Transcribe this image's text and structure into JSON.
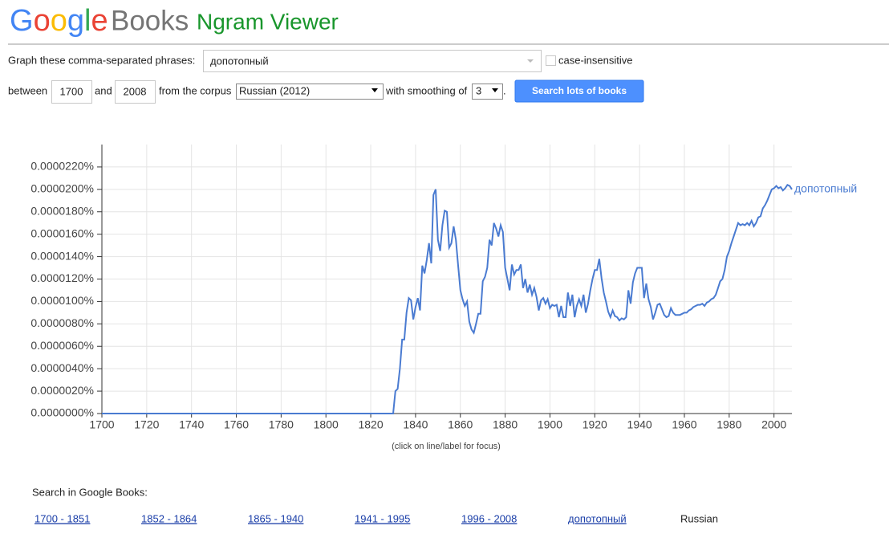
{
  "header": {
    "logo_google": "Google",
    "logo_books": "Books",
    "product": "Ngram Viewer"
  },
  "form": {
    "phrases_label": "Graph these comma-separated phrases:",
    "phrases": "допотопный",
    "case_insensitive": "case-insensitive",
    "between": "between",
    "start_year": "1700",
    "and": "and",
    "end_year": "2008",
    "corpus_label": "from the corpus",
    "corpus": "Russian (2012)",
    "smoothing_label": "with smoothing of",
    "smoothing": "3",
    "period": ".",
    "button": "Search lots of books"
  },
  "chart_data": {
    "type": "line",
    "note": "(click on line/label for focus)",
    "grid": true,
    "xlim": [
      1700,
      2008
    ],
    "ylim": [
      0,
      2.4e-05
    ],
    "xticks": [
      1700,
      1720,
      1740,
      1760,
      1780,
      1800,
      1820,
      1840,
      1860,
      1880,
      1900,
      1920,
      1940,
      1960,
      1980,
      2000
    ],
    "yticks": [
      {
        "value": 0,
        "label": "0.0000000%"
      },
      {
        "value": 2e-06,
        "label": "0.0000020%"
      },
      {
        "value": 4e-06,
        "label": "0.0000040%"
      },
      {
        "value": 6e-06,
        "label": "0.0000060%"
      },
      {
        "value": 8e-06,
        "label": "0.0000080%"
      },
      {
        "value": 1e-05,
        "label": "0.0000100%"
      },
      {
        "value": 1.2e-05,
        "label": "0.0000120%"
      },
      {
        "value": 1.4e-05,
        "label": "0.0000140%"
      },
      {
        "value": 1.6e-05,
        "label": "0.0000160%"
      },
      {
        "value": 1.8e-05,
        "label": "0.0000180%"
      },
      {
        "value": 2e-05,
        "label": "0.0000200%"
      },
      {
        "value": 2.2e-05,
        "label": "0.0000220%"
      }
    ],
    "x": [
      1700,
      1830,
      1831,
      1832,
      1833,
      1834,
      1835,
      1836,
      1837,
      1838,
      1839,
      1840,
      1841,
      1842,
      1843,
      1844,
      1845,
      1846,
      1847,
      1848,
      1849,
      1850,
      1851,
      1852,
      1853,
      1854,
      1855,
      1856,
      1857,
      1858,
      1859,
      1860,
      1861,
      1862,
      1863,
      1864,
      1865,
      1866,
      1867,
      1868,
      1869,
      1870,
      1871,
      1872,
      1873,
      1874,
      1875,
      1876,
      1877,
      1878,
      1879,
      1880,
      1881,
      1882,
      1883,
      1884,
      1885,
      1886,
      1887,
      1888,
      1889,
      1890,
      1891,
      1892,
      1893,
      1894,
      1895,
      1896,
      1897,
      1898,
      1899,
      1900,
      1901,
      1902,
      1903,
      1904,
      1905,
      1906,
      1907,
      1908,
      1909,
      1910,
      1911,
      1912,
      1913,
      1914,
      1915,
      1916,
      1917,
      1918,
      1919,
      1920,
      1921,
      1922,
      1923,
      1924,
      1925,
      1926,
      1927,
      1928,
      1929,
      1930,
      1931,
      1932,
      1933,
      1934,
      1935,
      1936,
      1937,
      1938,
      1939,
      1940,
      1941,
      1942,
      1943,
      1944,
      1945,
      1946,
      1947,
      1948,
      1949,
      1950,
      1951,
      1952,
      1953,
      1954,
      1955,
      1956,
      1957,
      1958,
      1959,
      1960,
      1961,
      1962,
      1963,
      1964,
      1965,
      1966,
      1967,
      1968,
      1969,
      1970,
      1971,
      1972,
      1973,
      1974,
      1975,
      1976,
      1977,
      1978,
      1979,
      1980,
      1981,
      1982,
      1983,
      1984,
      1985,
      1986,
      1987,
      1988,
      1989,
      1990,
      1991,
      1992,
      1993,
      1994,
      1995,
      1996,
      1997,
      1998,
      1999,
      2000,
      2001,
      2002,
      2003,
      2004,
      2005,
      2006,
      2007,
      2008
    ],
    "series": [
      {
        "name": "допотопный",
        "color": "#4a7bd1",
        "values": [
          0,
          0,
          2e-06,
          2.2e-06,
          4e-06,
          6.6e-06,
          6.6e-06,
          9e-06,
          1.03e-05,
          1.01e-05,
          8.4e-06,
          9.5e-06,
          1.03e-05,
          9.2e-06,
          1.32e-05,
          1.25e-05,
          1.37e-05,
          1.52e-05,
          1.34e-05,
          1.95e-05,
          2e-05,
          1.55e-05,
          1.45e-05,
          1.68e-05,
          1.81e-05,
          1.8e-05,
          1.48e-05,
          1.52e-05,
          1.67e-05,
          1.55e-05,
          1.32e-05,
          1.1e-05,
          1.02e-05,
          9.6e-06,
          1e-05,
          8.2e-06,
          7.5e-06,
          7.2e-06,
          8e-06,
          8.9e-06,
          8.9e-06,
          1.18e-05,
          1.22e-05,
          1.3e-05,
          1.55e-05,
          1.5e-05,
          1.7e-05,
          1.65e-05,
          1.58e-05,
          1.68e-05,
          1.62e-05,
          1.3e-05,
          1.2e-05,
          1.1e-05,
          1.33e-05,
          1.24e-05,
          1.28e-05,
          1.28e-05,
          1.33e-05,
          1.12e-05,
          1.2e-05,
          1.08e-05,
          1.15e-05,
          1.06e-05,
          1.12e-05,
          1.04e-05,
          9.2e-06,
          1.01e-05,
          1.03e-05,
          9.8e-06,
          1.02e-05,
          9.4e-06,
          9.7e-06,
          9.6e-06,
          9.7e-06,
          8.6e-06,
          9.6e-06,
          8.6e-06,
          8.6e-06,
          1.08e-05,
          9.6e-06,
          1.06e-05,
          8.6e-06,
          9.6e-06,
          1.02e-05,
          9.6e-06,
          1.06e-05,
          9e-06,
          9.8e-06,
          1.1e-05,
          1.2e-05,
          1.28e-05,
          1.28e-05,
          1.38e-05,
          1.21e-05,
          1.08e-05,
          1e-05,
          9.1e-06,
          8.6e-06,
          9.2e-06,
          8.7e-06,
          8.6e-06,
          8.3e-06,
          8.5e-06,
          8.4e-06,
          8.6e-06,
          1.1e-05,
          9.8e-06,
          1.17e-05,
          1.25e-05,
          1.3e-05,
          1.3e-05,
          1.3e-05,
          1.03e-05,
          1.16e-05,
          1.02e-05,
          9.5e-06,
          8.4e-06,
          9e-06,
          9.7e-06,
          9.8e-06,
          9.3e-06,
          8.8e-06,
          8.6e-06,
          8.7e-06,
          9.4e-06,
          9e-06,
          8.8e-06,
          8.8e-06,
          8.8e-06,
          8.9e-06,
          9e-06,
          9e-06,
          9.2e-06,
          9.3e-06,
          9.5e-06,
          9.6e-06,
          9.7e-06,
          9.7e-06,
          9.8e-06,
          9.6e-06,
          9.9e-06,
          1e-05,
          1.02e-05,
          1.03e-05,
          1.06e-05,
          1.12e-05,
          1.18e-05,
          1.2e-05,
          1.28e-05,
          1.4e-05,
          1.45e-05,
          1.52e-05,
          1.58e-05,
          1.64e-05,
          1.7e-05,
          1.68e-05,
          1.69e-05,
          1.68e-05,
          1.7e-05,
          1.68e-05,
          1.72e-05,
          1.67e-05,
          1.7e-05,
          1.75e-05,
          1.76e-05,
          1.83e-05,
          1.86e-05,
          1.9e-05,
          1.95e-05,
          2e-05,
          2.01e-05,
          2.03e-05,
          2.01e-05,
          2.02e-05,
          1.99e-05,
          2.01e-05,
          2.04e-05,
          2.03e-05,
          2e-05
        ]
      }
    ]
  },
  "search": {
    "label": "Search in Google Books:",
    "links": [
      "1700 - 1851",
      "1852 - 1864",
      "1865 - 1940",
      "1941 - 1995",
      "1996 - 2008",
      "допотопный"
    ],
    "corpus": "Russian"
  }
}
